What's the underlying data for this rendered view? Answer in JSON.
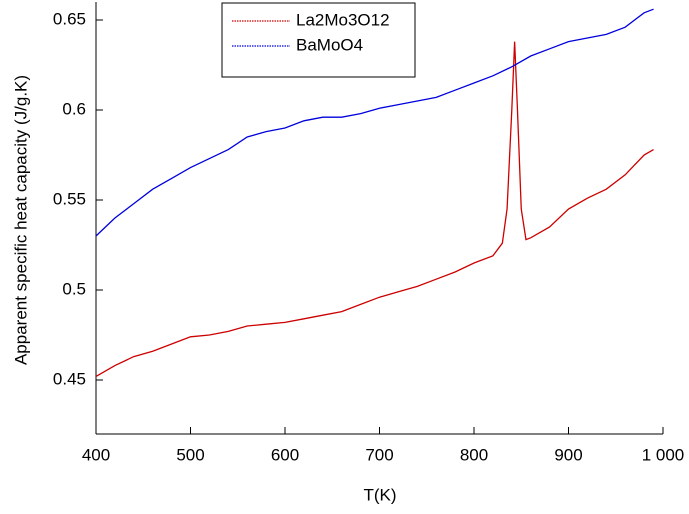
{
  "chart_data": {
    "type": "line",
    "x_label": "T(K)",
    "y_label": "Apparent specific heat capacity (J/g.K)",
    "xlim": [
      400,
      1000
    ],
    "xticks": [
      400,
      500,
      600,
      700,
      800,
      900,
      {
        "value": 1000,
        "label": "1 000"
      }
    ],
    "ylim": [
      0.42,
      0.66
    ],
    "yticks": [
      0.45,
      0.5,
      0.55,
      0.6,
      0.65
    ],
    "grid": false,
    "legend": "upper center",
    "series": [
      {
        "name": "La2Mo3O12",
        "color": "#cc0000",
        "x": [
          400,
          420,
          440,
          460,
          480,
          500,
          520,
          540,
          560,
          580,
          600,
          620,
          640,
          660,
          680,
          700,
          720,
          740,
          760,
          780,
          800,
          820,
          830,
          835,
          840,
          843,
          846,
          850,
          855,
          860,
          880,
          900,
          920,
          940,
          960,
          980,
          990
        ],
        "values": [
          0.452,
          0.458,
          0.463,
          0.466,
          0.47,
          0.474,
          0.475,
          0.477,
          0.48,
          0.481,
          0.482,
          0.484,
          0.486,
          0.488,
          0.492,
          0.496,
          0.499,
          0.502,
          0.506,
          0.51,
          0.515,
          0.519,
          0.526,
          0.545,
          0.6,
          0.638,
          0.6,
          0.545,
          0.528,
          0.529,
          0.535,
          0.545,
          0.551,
          0.556,
          0.564,
          0.575,
          0.578
        ]
      },
      {
        "name": "BaMoO4",
        "color": "#0000dd",
        "x": [
          400,
          420,
          440,
          460,
          480,
          500,
          520,
          540,
          560,
          580,
          600,
          620,
          640,
          660,
          680,
          700,
          720,
          740,
          760,
          780,
          800,
          820,
          840,
          860,
          880,
          900,
          920,
          940,
          960,
          980,
          990
        ],
        "values": [
          0.53,
          0.54,
          0.548,
          0.556,
          0.562,
          0.568,
          0.573,
          0.578,
          0.585,
          0.588,
          0.59,
          0.594,
          0.596,
          0.596,
          0.598,
          0.601,
          0.603,
          0.605,
          0.607,
          0.611,
          0.615,
          0.619,
          0.624,
          0.63,
          0.634,
          0.638,
          0.64,
          0.642,
          0.646,
          0.654,
          0.656
        ]
      }
    ]
  }
}
